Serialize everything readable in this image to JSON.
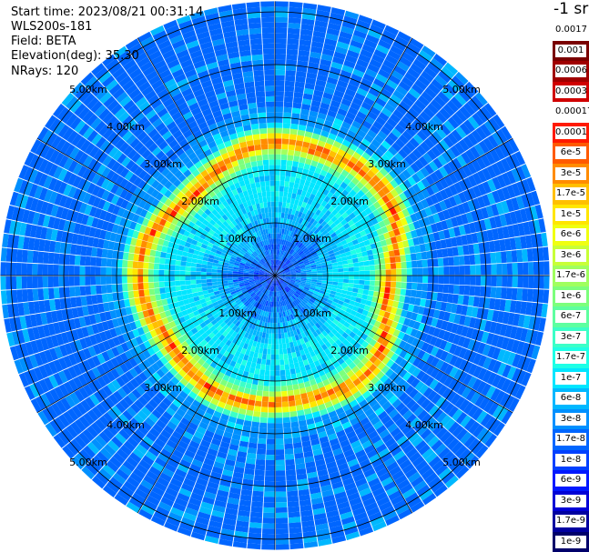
{
  "header": {
    "start_time": "Start time: 2023/08/21 00:31:14",
    "instrument": "WLS200s-181",
    "field": "Field: BETA",
    "elevation": "Elevation(deg): 35.30",
    "nrays": "NRays: 120"
  },
  "colorbar": {
    "unit_label": "-1 sr",
    "labels": [
      "0.0017",
      "0.001",
      "0.0006",
      "0.0003",
      "0.00017",
      "0.0001",
      "6e-5",
      "3e-5",
      "1.7e-5",
      "1e-5",
      "6e-6",
      "3e-6",
      "1.7e-6",
      "1e-6",
      "6e-7",
      "3e-7",
      "1.7e-7",
      "1e-7",
      "6e-8",
      "3e-8",
      "1.7e-8",
      "1e-8",
      "6e-9",
      "3e-9",
      "1.7e-9",
      "1e-9"
    ],
    "colors": [
      "#ffffff",
      "#7a0000",
      "#a00000",
      "#d00000",
      "#ffffff",
      "#ff1a00",
      "#ff5a00",
      "#ff8c00",
      "#ffbf00",
      "#ffe600",
      "#f0ff10",
      "#c8ff37",
      "#a0ff5e",
      "#7cff7c",
      "#5effa0",
      "#3cffc8",
      "#1effe6",
      "#00e6ff",
      "#00b8ff",
      "#0090ff",
      "#0066ff",
      "#0040ff",
      "#0018ff",
      "#0000d6",
      "#0000a0",
      "#00006a"
    ]
  },
  "range_labels": [
    "1.00km",
    "2.00km",
    "3.00km",
    "4.00km",
    "5.00km"
  ],
  "chart_data": {
    "type": "ppi",
    "title": "",
    "field": "BETA",
    "units": "-1 sr",
    "elevation_deg": 35.3,
    "n_rays": 120,
    "range_rings_km": [
      1,
      2,
      3,
      4,
      5
    ],
    "max_range_km": 5.2,
    "colorbar_levels": [
      "0.0017",
      "0.001",
      "0.0006",
      "0.0003",
      "0.00017",
      "0.0001",
      "6e-5",
      "3e-5",
      "1.7e-5",
      "1e-5",
      "6e-6",
      "3e-6",
      "1.7e-6",
      "1e-6",
      "6e-7",
      "3e-7",
      "1.7e-7",
      "1e-7",
      "6e-8",
      "3e-8",
      "1.7e-8",
      "1e-8",
      "6e-9",
      "3e-9",
      "1.7e-9",
      "1e-9"
    ],
    "radial_profile": [
      {
        "range_km": 0.0,
        "level": 21
      },
      {
        "range_km": 0.5,
        "level": 20
      },
      {
        "range_km": 1.0,
        "level": 18
      },
      {
        "range_km": 1.5,
        "level": 17
      },
      {
        "range_km": 2.0,
        "level": 17
      },
      {
        "range_km": 2.25,
        "level": 12
      },
      {
        "range_km": 2.4,
        "level": 6
      },
      {
        "range_km": 2.55,
        "level": 9
      },
      {
        "range_km": 2.8,
        "level": 19
      },
      {
        "range_km": 3.5,
        "level": 20
      },
      {
        "range_km": 4.5,
        "level": 20
      },
      {
        "range_km": 5.2,
        "level": 20
      }
    ]
  }
}
